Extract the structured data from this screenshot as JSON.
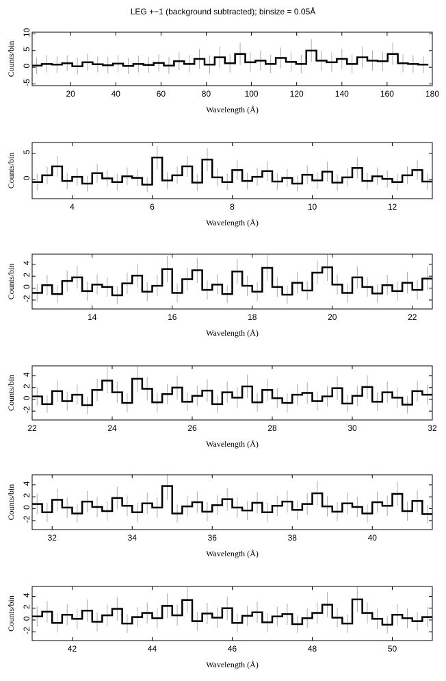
{
  "chart_data": [
    {
      "type": "step",
      "title": "LEG +−1 (background subtracted); binsize = 0.05Å",
      "xlabel": "Wavelength (Å)",
      "ylabel": "Counts/bin",
      "color": "#000000",
      "error_color": "#aaaaaa",
      "xlim": [
        3,
        180
      ],
      "ylim": [
        -5.5,
        10.5
      ],
      "xticks": [
        20,
        40,
        60,
        80,
        100,
        120,
        140,
        160,
        180
      ],
      "yticks": [
        -5,
        0,
        5,
        10
      ],
      "x": [
        5,
        9.5,
        14,
        18.5,
        23,
        27.5,
        32,
        36.5,
        41,
        45.5,
        50,
        54.5,
        59,
        63.5,
        68,
        72.5,
        77,
        81.5,
        86,
        90.5,
        95,
        99.5,
        104,
        108.5,
        113,
        117.5,
        122,
        126.5,
        131,
        135.5,
        140,
        144.5,
        149,
        153.5,
        158,
        162.5,
        167,
        171.5,
        176
      ],
      "values": [
        0.5,
        1,
        0.8,
        1.2,
        0.3,
        1.5,
        0.9,
        0.6,
        1.1,
        0.4,
        1,
        0.7,
        1.3,
        0.5,
        1.8,
        1,
        2.5,
        0.8,
        3,
        1.2,
        4,
        1.5,
        2,
        1,
        2.8,
        1.6,
        1,
        5,
        2,
        1.5,
        2.5,
        1,
        3,
        2,
        1.8,
        4,
        1.2,
        1,
        0.8
      ],
      "errors": [
        2.5,
        2.6,
        2.5,
        2.4,
        2.5,
        2.6,
        2.4,
        2.5,
        2.5,
        2.4,
        2.5,
        2.4,
        2.6,
        2.5,
        2.7,
        2.6,
        3,
        2.7,
        3.2,
        2.8,
        3.3,
        2.9,
        3,
        2.8,
        3.1,
        2.9,
        2.8,
        3.4,
        3,
        2.9,
        3,
        2.8,
        3.1,
        3,
        2.9,
        3.3,
        2.7,
        2.6,
        2.5
      ]
    },
    {
      "type": "step",
      "xlabel": "Wavelength (Å)",
      "ylabel": "Counts/bin",
      "color": "#000000",
      "error_color": "#aaaaaa",
      "xlim": [
        3,
        13
      ],
      "ylim": [
        -3.7,
        7.1
      ],
      "xticks": [
        4,
        6,
        8,
        10,
        12
      ],
      "yticks": [
        0,
        5
      ],
      "x": [
        3.125,
        3.375,
        3.625,
        3.875,
        4.125,
        4.375,
        4.625,
        4.875,
        5.125,
        5.375,
        5.625,
        5.875,
        6.125,
        6.375,
        6.625,
        6.875,
        7.125,
        7.375,
        7.625,
        7.875,
        8.125,
        8.375,
        8.625,
        8.875,
        9.125,
        9.375,
        9.625,
        9.875,
        10.125,
        10.375,
        10.625,
        10.875,
        11.125,
        11.375,
        11.625,
        11.875,
        12.125,
        12.375,
        12.625,
        12.875
      ],
      "values": [
        -0.5,
        0.8,
        2.5,
        -0.3,
        0.5,
        -0.8,
        1.2,
        0.2,
        -0.5,
        0.6,
        0.3,
        -1,
        4.2,
        -0.2,
        0.8,
        2.5,
        -0.6,
        3.8,
        0.4,
        -0.5,
        1.8,
        -0.3,
        0.5,
        1.6,
        -0.4,
        0.3,
        -0.8,
        0.9,
        -0.2,
        1.5,
        -0.6,
        0.4,
        2.2,
        -0.3,
        0.6,
        0.1,
        -0.5,
        0.8,
        1.8,
        -0.4
      ],
      "errors": [
        1.6,
        1.7,
        2,
        1.6,
        1.7,
        1.5,
        1.8,
        1.6,
        1.6,
        1.7,
        1.6,
        1.5,
        2.3,
        1.6,
        1.7,
        2,
        1.6,
        2.2,
        1.7,
        1.6,
        1.9,
        1.6,
        1.7,
        1.9,
        1.6,
        1.7,
        1.5,
        1.8,
        1.6,
        1.9,
        1.6,
        1.7,
        2,
        1.6,
        1.7,
        1.6,
        1.6,
        1.7,
        1.9,
        1.6
      ]
    },
    {
      "type": "step",
      "xlabel": "Wavelength (Å)",
      "ylabel": "Counts/bin",
      "color": "#000000",
      "error_color": "#aaaaaa",
      "xlim": [
        12.5,
        22.5
      ],
      "ylim": [
        -3.5,
        5.7
      ],
      "xticks": [
        14,
        16,
        18,
        20,
        22
      ],
      "yticks": [
        -2,
        0,
        2,
        4
      ],
      "x": [
        12.625,
        12.875,
        13.125,
        13.375,
        13.625,
        13.875,
        14.125,
        14.375,
        14.625,
        14.875,
        15.125,
        15.375,
        15.625,
        15.875,
        16.125,
        16.375,
        16.625,
        16.875,
        17.125,
        17.375,
        17.625,
        17.875,
        18.125,
        18.375,
        18.625,
        18.875,
        19.125,
        19.375,
        19.625,
        19.875,
        20.125,
        20.375,
        20.625,
        20.875,
        21.125,
        21.375,
        21.625,
        21.875,
        22.125,
        22.375
      ],
      "values": [
        -0.8,
        0.5,
        -1,
        1.2,
        1.8,
        -0.5,
        0.6,
        0.2,
        -1.2,
        0.8,
        2.1,
        -0.6,
        0.4,
        3.2,
        -0.8,
        1.5,
        3,
        -0.3,
        0.6,
        -1,
        2.8,
        0.4,
        -0.6,
        3.4,
        0.2,
        -1.1,
        0.9,
        -0.4,
        2.6,
        3.5,
        0.6,
        -0.8,
        1.8,
        0.2,
        -0.9,
        0.5,
        -0.5,
        0.9,
        -0.3,
        1.6
      ],
      "errors": [
        1.5,
        1.7,
        1.5,
        1.8,
        1.9,
        1.6,
        1.7,
        1.6,
        1.5,
        1.8,
        2,
        1.6,
        1.7,
        2.2,
        1.6,
        1.9,
        2.1,
        1.6,
        1.7,
        1.5,
        2.1,
        1.7,
        1.6,
        2.2,
        1.7,
        1.5,
        1.8,
        1.6,
        2,
        2.3,
        1.7,
        1.6,
        1.9,
        1.7,
        1.5,
        1.7,
        1.6,
        1.8,
        1.6,
        1.9
      ]
    },
    {
      "type": "step",
      "xlabel": "Wavelength (Å)",
      "ylabel": "Counts/bin",
      "color": "#000000",
      "error_color": "#aaaaaa",
      "xlim": [
        22,
        32
      ],
      "ylim": [
        -3.5,
        5.7
      ],
      "xticks": [
        22,
        24,
        26,
        28,
        30,
        32
      ],
      "yticks": [
        -2,
        0,
        2,
        4
      ],
      "x": [
        22.125,
        22.375,
        22.625,
        22.875,
        23.125,
        23.375,
        23.625,
        23.875,
        24.125,
        24.375,
        24.625,
        24.875,
        25.125,
        25.375,
        25.625,
        25.875,
        26.125,
        26.375,
        26.625,
        26.875,
        27.125,
        27.375,
        27.625,
        27.875,
        28.125,
        28.375,
        28.625,
        28.875,
        29.125,
        29.375,
        29.625,
        29.875,
        30.125,
        30.375,
        30.625,
        30.875,
        31.125,
        31.375,
        31.625,
        31.875
      ],
      "values": [
        0.5,
        -0.8,
        1.4,
        -0.3,
        0.8,
        -1,
        1.6,
        3.2,
        1.2,
        -0.6,
        3.5,
        1.8,
        -0.5,
        0.9,
        2,
        -0.4,
        0.6,
        1.5,
        -0.8,
        1.2,
        0.3,
        2.2,
        -0.5,
        1.6,
        0.2,
        -0.6,
        0.8,
        1.1,
        -0.3,
        0.5,
        1.9,
        -0.7,
        0.6,
        2.1,
        -0.4,
        1.2,
        0.3,
        -0.9,
        1.4,
        0.8
      ],
      "errors": [
        1.6,
        1.5,
        1.8,
        1.6,
        1.7,
        1.5,
        1.9,
        2.2,
        1.8,
        1.6,
        2.3,
        2,
        1.6,
        1.7,
        2,
        1.6,
        1.7,
        1.9,
        1.5,
        1.8,
        1.7,
        2,
        1.6,
        1.9,
        1.7,
        1.6,
        1.8,
        1.8,
        1.6,
        1.7,
        2,
        1.5,
        1.7,
        2,
        1.6,
        1.8,
        1.7,
        1.5,
        1.8,
        1.7
      ]
    },
    {
      "type": "step",
      "xlabel": "Wavelength (Å)",
      "ylabel": "Counts/bin",
      "color": "#000000",
      "error_color": "#aaaaaa",
      "xlim": [
        31.5,
        41.5
      ],
      "ylim": [
        -3.5,
        5.7
      ],
      "xticks": [
        32,
        34,
        36,
        38,
        40
      ],
      "yticks": [
        -2,
        0,
        2,
        4
      ],
      "x": [
        31.625,
        31.875,
        32.125,
        32.375,
        32.625,
        32.875,
        33.125,
        33.375,
        33.625,
        33.875,
        34.125,
        34.375,
        34.625,
        34.875,
        35.125,
        35.375,
        35.625,
        35.875,
        36.125,
        36.375,
        36.625,
        36.875,
        37.125,
        37.375,
        37.625,
        37.875,
        38.125,
        38.375,
        38.625,
        38.875,
        39.125,
        39.375,
        39.625,
        39.875,
        40.125,
        40.375,
        40.625,
        40.875,
        41.125,
        41.375
      ],
      "values": [
        0.8,
        -0.6,
        1.5,
        0.2,
        -0.8,
        1.2,
        0.3,
        -0.4,
        1.8,
        0.5,
        -0.6,
        0.9,
        0.2,
        3.8,
        -0.8,
        0.4,
        1.1,
        -0.5,
        0.6,
        1.6,
        0.2,
        -0.3,
        1,
        -0.6,
        0.5,
        1.2,
        -0.2,
        0.8,
        2.6,
        0.4,
        -0.5,
        0.9,
        0.3,
        -0.8,
        1.1,
        0.5,
        2.5,
        -0.4,
        1.3,
        -0.9
      ],
      "errors": [
        1.7,
        1.6,
        1.9,
        1.7,
        1.5,
        1.8,
        1.7,
        1.6,
        1.9,
        1.7,
        1.6,
        1.8,
        1.7,
        2.3,
        1.5,
        1.7,
        1.8,
        1.6,
        1.7,
        1.9,
        1.7,
        1.6,
        1.8,
        1.6,
        1.7,
        1.8,
        1.6,
        1.8,
        2.1,
        1.7,
        1.6,
        1.8,
        1.7,
        1.5,
        1.8,
        1.7,
        2,
        1.6,
        1.8,
        1.5
      ]
    },
    {
      "type": "step",
      "xlabel": "Wavelength (Å)",
      "ylabel": "Counts/bin",
      "color": "#000000",
      "error_color": "#aaaaaa",
      "xlim": [
        41,
        51
      ],
      "ylim": [
        -3.5,
        5.7
      ],
      "xticks": [
        42,
        44,
        46,
        48,
        50
      ],
      "yticks": [
        -2,
        0,
        2,
        4
      ],
      "x": [
        41.125,
        41.375,
        41.625,
        41.875,
        42.125,
        42.375,
        42.625,
        42.875,
        43.125,
        43.375,
        43.625,
        43.875,
        44.125,
        44.375,
        44.625,
        44.875,
        45.125,
        45.375,
        45.625,
        45.875,
        46.125,
        46.375,
        46.625,
        46.875,
        47.125,
        47.375,
        47.625,
        47.875,
        48.125,
        48.375,
        48.625,
        48.875,
        49.125,
        49.375,
        49.625,
        49.875,
        50.125,
        50.375,
        50.625,
        50.875
      ],
      "values": [
        0.6,
        1.4,
        -0.5,
        0.9,
        0.2,
        1.6,
        -0.3,
        0.8,
        1.9,
        -0.6,
        0.5,
        1.2,
        0.3,
        2.4,
        0.8,
        3.4,
        -0.2,
        1.1,
        0.4,
        2,
        -0.5,
        0.7,
        1.3,
        -0.4,
        0.6,
        1,
        -0.7,
        0.3,
        1.2,
        2.6,
        0.4,
        -0.6,
        3.5,
        1.2,
        0.2,
        -0.8,
        0.9,
        0.3,
        -0.2,
        0.5
      ],
      "errors": [
        1.7,
        1.8,
        1.6,
        1.8,
        1.7,
        1.9,
        1.6,
        1.8,
        2,
        1.6,
        1.7,
        1.8,
        1.7,
        2.1,
        1.8,
        2.2,
        1.6,
        1.8,
        1.7,
        2,
        1.6,
        1.7,
        1.8,
        1.6,
        1.7,
        1.8,
        1.5,
        1.7,
        1.8,
        2.1,
        1.7,
        1.6,
        2.2,
        1.8,
        1.7,
        1.5,
        1.8,
        1.7,
        1.6,
        1.7
      ]
    }
  ]
}
